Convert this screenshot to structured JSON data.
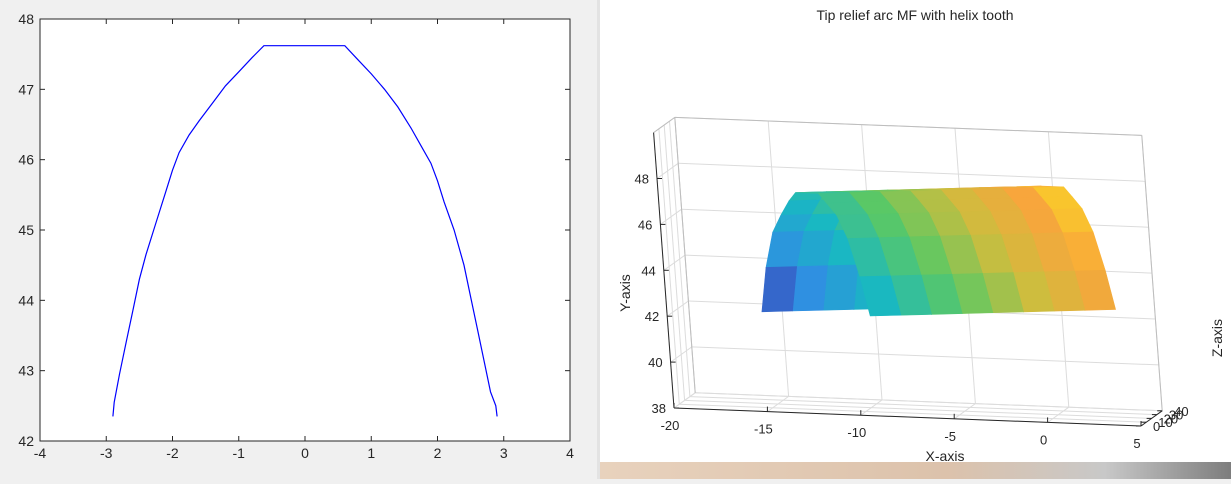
{
  "chart_data": [
    {
      "type": "line",
      "title": "",
      "xlabel": "",
      "ylabel": "",
      "xlim": [
        -4,
        4
      ],
      "ylim": [
        42,
        48
      ],
      "xticks": [
        "-4",
        "-3",
        "-2",
        "-1",
        "0",
        "1",
        "2",
        "3",
        "4"
      ],
      "yticks": [
        "42",
        "43",
        "44",
        "45",
        "46",
        "47",
        "48"
      ],
      "grid": false,
      "series": [
        {
          "color": "#0000ff",
          "x": [
            -2.9,
            -2.88,
            -2.8,
            -2.7,
            -2.6,
            -2.5,
            -2.4,
            -2.25,
            -2.1,
            -2.0,
            -1.9,
            -1.75,
            -1.6,
            -1.4,
            -1.2,
            -1.0,
            -0.8,
            -0.62,
            0.6,
            0.8,
            1.0,
            1.2,
            1.4,
            1.6,
            1.75,
            1.9,
            2.0,
            2.1,
            2.25,
            2.4,
            2.5,
            2.6,
            2.7,
            2.8,
            2.88,
            2.9
          ],
          "y": [
            42.35,
            42.55,
            42.95,
            43.4,
            43.85,
            44.3,
            44.65,
            45.1,
            45.55,
            45.85,
            46.1,
            46.35,
            46.55,
            46.8,
            47.05,
            47.25,
            47.45,
            47.62,
            47.62,
            47.42,
            47.22,
            47.0,
            46.75,
            46.45,
            46.2,
            45.95,
            45.7,
            45.4,
            45.0,
            44.5,
            44.05,
            43.6,
            43.15,
            42.7,
            42.5,
            42.35
          ]
        }
      ]
    },
    {
      "type": "surface",
      "title": "Tip relief arc MF with helix tooth",
      "xlabel": "X-axis",
      "ylabel": "Y-axis",
      "zlabel": "Z-axis",
      "xlim": [
        -20,
        5
      ],
      "ylim": [
        38,
        50
      ],
      "zlim": [
        0,
        40
      ],
      "xticks": [
        "-20",
        "-15",
        "-10",
        "-5",
        "0",
        "5"
      ],
      "yticks": [
        "38",
        "40",
        "42",
        "44",
        "46",
        "48"
      ],
      "zticks": [
        "0",
        "10",
        "20",
        "30",
        "40"
      ],
      "grid": true,
      "colormap": "parula",
      "colormap_colors": [
        "#3e26a8",
        "#2f90e1",
        "#19b8c2",
        "#5cc863",
        "#cdbd3e",
        "#f9a53c",
        "#f9fb15"
      ],
      "surface_profile": {
        "x": [
          -2.9,
          -2.5,
          -2.0,
          -1.5,
          -1.0,
          -0.62,
          0.6,
          1.0,
          1.5,
          2.0,
          2.5,
          2.9
        ],
        "y": [
          42.35,
          44.3,
          45.85,
          46.6,
          47.25,
          47.62,
          47.62,
          47.22,
          46.7,
          45.7,
          44.05,
          42.35
        ],
        "z_range": [
          0,
          40
        ],
        "helix_x_shift": -12
      }
    }
  ]
}
